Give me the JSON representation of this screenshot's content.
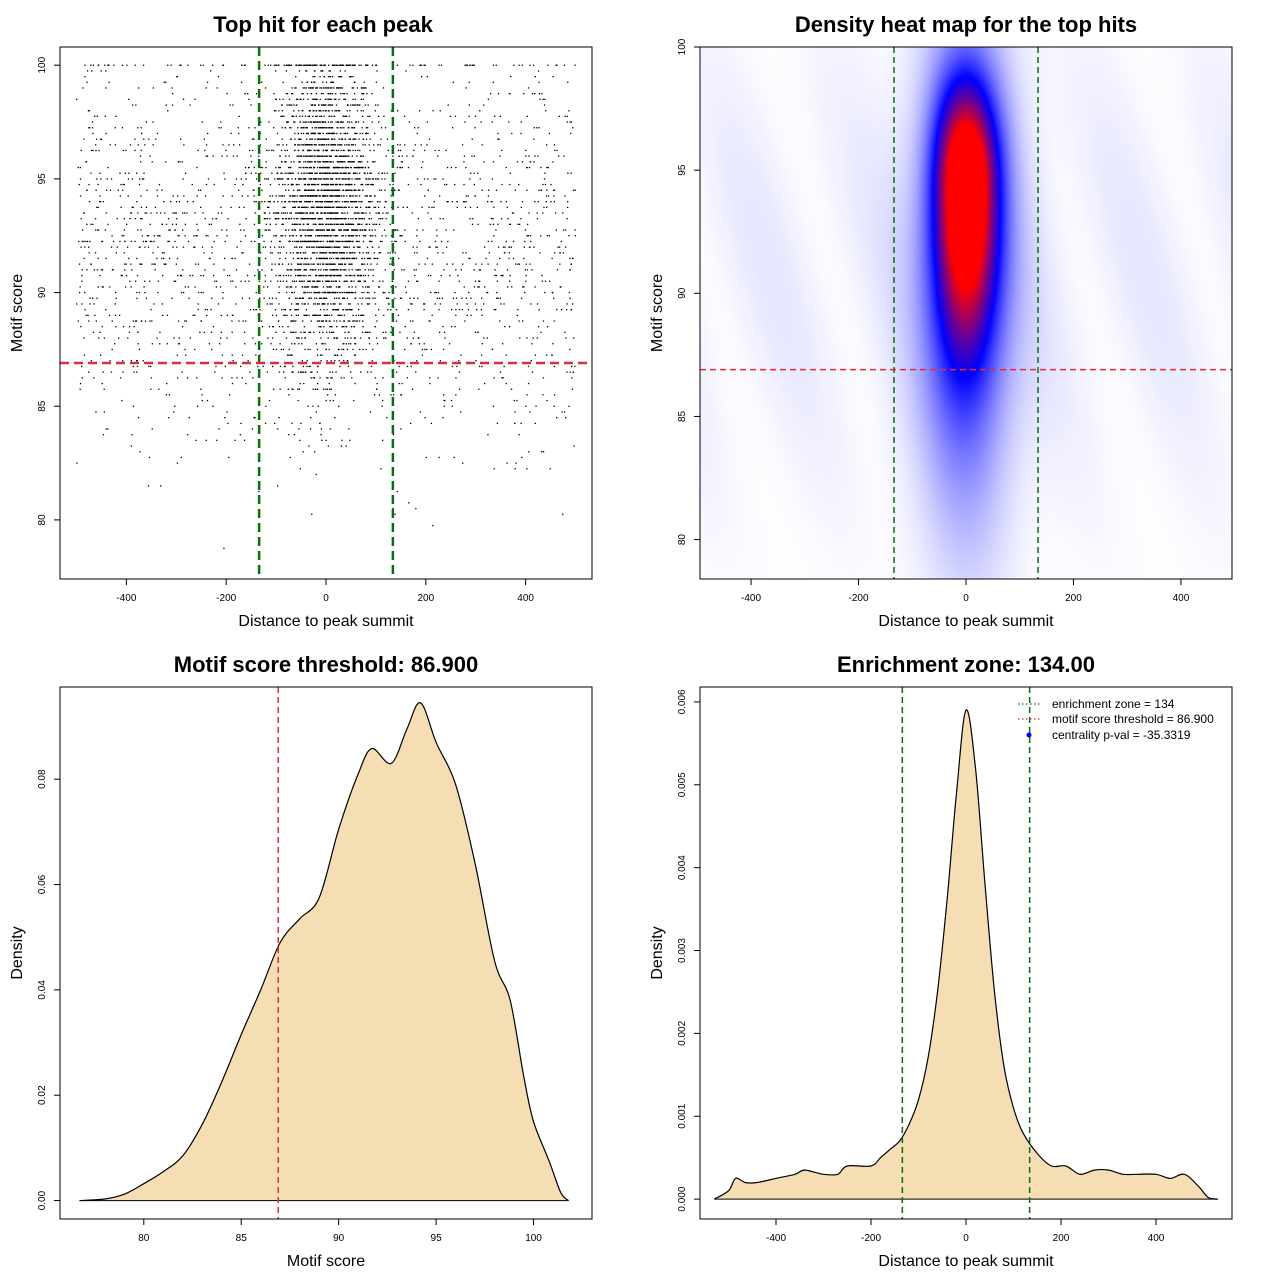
{
  "colors": {
    "points": "#000000",
    "threshold": "#dc2f3a",
    "zone": "#0a6e0a",
    "density_fill": "#f5deb3",
    "density_line": "#000000",
    "heat_low": "#ffffff",
    "heat_mid": "#0000ff",
    "heat_high": "#ff0000",
    "pval_point": "#0000ff"
  },
  "chart_data": [
    {
      "id": "scatter",
      "type": "scatter",
      "title": "Top hit for each peak",
      "xlabel": "Distance to peak summit",
      "ylabel": "Motif score",
      "xlim": [
        -533,
        533
      ],
      "ylim": [
        77.4,
        100.8
      ],
      "xticks": [
        -400,
        -200,
        0,
        200,
        400
      ],
      "xtick_labels": [
        "-400",
        "-200",
        "0",
        "200",
        "400"
      ],
      "yticks": [
        80,
        85,
        90,
        95,
        100
      ],
      "ytick_labels": [
        "80",
        "85",
        "90",
        "95",
        "100"
      ],
      "vlines": [
        -134,
        134
      ],
      "hline": 86.9,
      "point_model": {
        "n_central": 2800,
        "central_sd": 50,
        "n_uniform": 2000,
        "x_range": [
          -500,
          500
        ],
        "score_mean": 93,
        "score_sd": 4,
        "score_range": [
          78.7,
          100
        ]
      }
    },
    {
      "id": "heatmap",
      "type": "heatmap",
      "title": "Density heat map for the top hits",
      "xlabel": "Distance to peak summit",
      "ylabel": "Motif score",
      "xlim": [
        -495,
        495
      ],
      "ylim": [
        78.4,
        100.0
      ],
      "xticks": [
        -400,
        -200,
        0,
        200,
        400
      ],
      "xtick_labels": [
        "-400",
        "-200",
        "0",
        "200",
        "400"
      ],
      "yticks": [
        80,
        85,
        90,
        95,
        100
      ],
      "ytick_labels": [
        "80",
        "85",
        "90",
        "95",
        "100"
      ],
      "vlines": [
        -134,
        134
      ],
      "hline": 86.9,
      "peak": {
        "x": 0,
        "y": 94.5,
        "x_sd": 38,
        "y_sd_upper": 2.6,
        "y_sd_lower": 4.2
      }
    },
    {
      "id": "score-density",
      "type": "area",
      "title": "Motif score threshold: 86.900",
      "xlabel": "Motif score",
      "ylabel": "Density",
      "xlim": [
        75.7,
        103.0
      ],
      "ylim": [
        -0.0035,
        0.0975
      ],
      "xticks": [
        80,
        85,
        90,
        95,
        100
      ],
      "xtick_labels": [
        "80",
        "85",
        "90",
        "95",
        "100"
      ],
      "yticks": [
        0,
        0.02,
        0.04,
        0.06,
        0.08
      ],
      "ytick_labels": [
        "0.00",
        "0.02",
        "0.04",
        "0.06",
        "0.08"
      ],
      "vline": 86.9,
      "x": [
        76.7,
        78,
        79,
        80,
        81,
        82,
        83,
        84,
        85,
        86,
        87,
        88,
        89,
        90,
        91,
        91.7,
        92.7,
        93.5,
        94.2,
        95,
        96,
        97,
        98,
        98.8,
        99.5,
        100,
        100.8,
        101.4,
        101.8
      ],
      "y": [
        0,
        0.0003,
        0.0012,
        0.0032,
        0.0055,
        0.0085,
        0.0145,
        0.0225,
        0.0315,
        0.04,
        0.049,
        0.0535,
        0.0575,
        0.0705,
        0.081,
        0.0858,
        0.083,
        0.0895,
        0.0945,
        0.087,
        0.079,
        0.064,
        0.0455,
        0.038,
        0.0235,
        0.015,
        0.0075,
        0.0015,
        0
      ]
    },
    {
      "id": "distance-density",
      "type": "area",
      "title": "Enrichment zone: 134.00",
      "xlabel": "Distance to peak summit",
      "ylabel": "Density",
      "xlim": [
        -560,
        560
      ],
      "ylim": [
        -0.00024,
        0.00618
      ],
      "xticks": [
        -400,
        -200,
        0,
        200,
        400
      ],
      "xtick_labels": [
        "-400",
        "-200",
        "0",
        "200",
        "400"
      ],
      "yticks": [
        0,
        0.001,
        0.002,
        0.003,
        0.004,
        0.005,
        0.006
      ],
      "ytick_labels": [
        "0.000",
        "0.001",
        "0.002",
        "0.003",
        "0.004",
        "0.005",
        "0.006"
      ],
      "vlines": [
        -134,
        134
      ],
      "x": [
        -530,
        -500,
        -485,
        -465,
        -440,
        -400,
        -360,
        -340,
        -300,
        -270,
        -250,
        -200,
        -180,
        -160,
        -140,
        -120,
        -100,
        -80,
        -60,
        -40,
        -20,
        0,
        20,
        40,
        60,
        80,
        100,
        120,
        150,
        180,
        210,
        240,
        270,
        300,
        330,
        360,
        400,
        430,
        460,
        490,
        510,
        530
      ],
      "y": [
        0,
        0.0001,
        0.00025,
        0.0002,
        0.0002,
        0.00025,
        0.0003,
        0.00035,
        0.0003,
        0.0003,
        0.0004,
        0.0004,
        0.0005,
        0.0006,
        0.0007,
        0.0009,
        0.0012,
        0.0017,
        0.0025,
        0.0036,
        0.0049,
        0.0059,
        0.0052,
        0.0038,
        0.0025,
        0.0016,
        0.0011,
        0.0008,
        0.00055,
        0.0004,
        0.0004,
        0.0003,
        0.00035,
        0.00035,
        0.0003,
        0.0003,
        0.0003,
        0.00025,
        0.0003,
        0.00015,
        2e-05,
        0
      ],
      "legend": [
        {
          "style": "green-dotted",
          "label": "enrichment zone = 134"
        },
        {
          "style": "red-dotted",
          "label": "motif score threshold = 86.900"
        },
        {
          "style": "blue-point",
          "label": "centrality p-val = -35.3319"
        }
      ]
    }
  ]
}
